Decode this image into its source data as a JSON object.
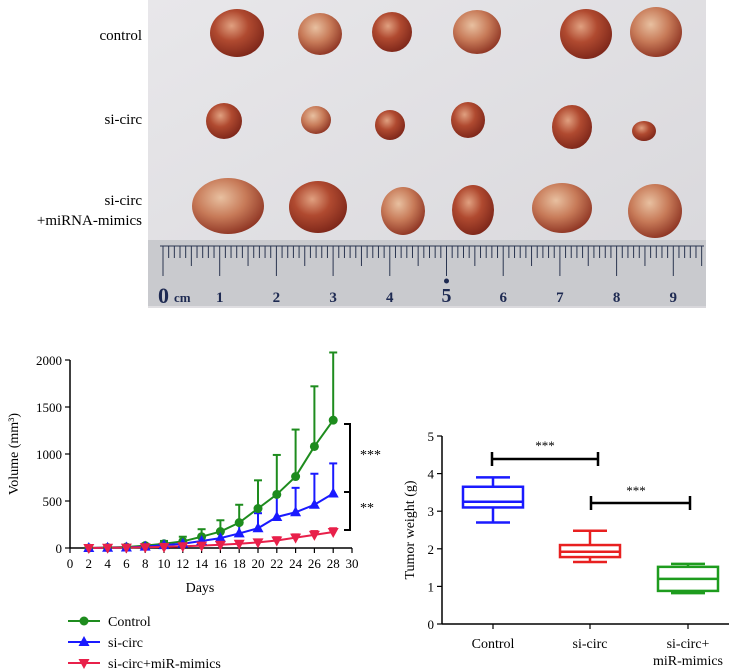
{
  "photo": {
    "row_labels": [
      "control",
      "si-circ",
      "si-circ",
      "+miRNA-mimics"
    ],
    "ruler": {
      "zero": "0",
      "unit": "cm",
      "ticks": [
        "1",
        "2",
        "3",
        "4",
        "5",
        "6",
        "7",
        "8",
        "9"
      ]
    }
  },
  "chart_data": [
    {
      "type": "line",
      "xlabel": "Days",
      "ylabel": "Volume (mm³)",
      "xlim": [
        0,
        30
      ],
      "ylim": [
        0,
        2000
      ],
      "xticks": [
        0,
        2,
        4,
        6,
        8,
        10,
        12,
        14,
        16,
        18,
        20,
        22,
        24,
        26,
        28,
        30
      ],
      "yticks": [
        0,
        500,
        1000,
        1500,
        2000
      ],
      "series": [
        {
          "name": "Control",
          "color": "#1e8c1e",
          "marker": "circle",
          "x": [
            2,
            4,
            6,
            8,
            10,
            12,
            14,
            16,
            18,
            20,
            22,
            24,
            26,
            28
          ],
          "y": [
            0,
            5,
            10,
            25,
            45,
            70,
            120,
            175,
            270,
            420,
            570,
            760,
            1080,
            1360
          ],
          "err": [
            5,
            8,
            12,
            20,
            30,
            50,
            80,
            120,
            190,
            300,
            420,
            500,
            640,
            720
          ]
        },
        {
          "name": "si-circ",
          "color": "#1a1aff",
          "marker": "triangle-up",
          "x": [
            2,
            4,
            6,
            8,
            10,
            12,
            14,
            16,
            18,
            20,
            22,
            24,
            26,
            28
          ],
          "y": [
            0,
            3,
            5,
            15,
            30,
            45,
            75,
            105,
            155,
            210,
            330,
            380,
            460,
            580
          ],
          "err": [
            3,
            5,
            8,
            10,
            20,
            30,
            50,
            70,
            110,
            160,
            230,
            260,
            330,
            320
          ]
        },
        {
          "name": "si-circ+miR-mimics",
          "color": "#e8204a",
          "marker": "triangle-down",
          "x": [
            2,
            4,
            6,
            8,
            10,
            12,
            14,
            16,
            18,
            20,
            22,
            24,
            26,
            28
          ],
          "y": [
            0,
            2,
            4,
            8,
            12,
            18,
            25,
            35,
            45,
            60,
            80,
            110,
            140,
            170
          ],
          "err": [
            2,
            3,
            5,
            8,
            10,
            15,
            20,
            25,
            30,
            30,
            35,
            35,
            40,
            40
          ]
        }
      ],
      "significance": [
        "***",
        "**"
      ]
    },
    {
      "type": "box",
      "ylabel": "Tumor weight (g)",
      "ylim": [
        0,
        5
      ],
      "yticks": [
        0,
        1,
        2,
        3,
        4,
        5
      ],
      "categories": [
        "Control",
        "si-circ",
        "si-circ+",
        "miR-mimics"
      ],
      "boxes": [
        {
          "name": "Control",
          "color": "#1a1aff",
          "min": 2.7,
          "q1": 3.1,
          "median": 3.25,
          "q3": 3.65,
          "max": 3.9
        },
        {
          "name": "si-circ",
          "color": "#e82020",
          "min": 1.65,
          "q1": 1.78,
          "median": 1.92,
          "q3": 2.1,
          "max": 2.48
        },
        {
          "name": "si-circ+miR-mimics",
          "color": "#1e9c1e",
          "min": 0.82,
          "q1": 0.88,
          "median": 1.2,
          "q3": 1.52,
          "max": 1.6
        }
      ],
      "significance": [
        "***",
        "***"
      ]
    }
  ]
}
